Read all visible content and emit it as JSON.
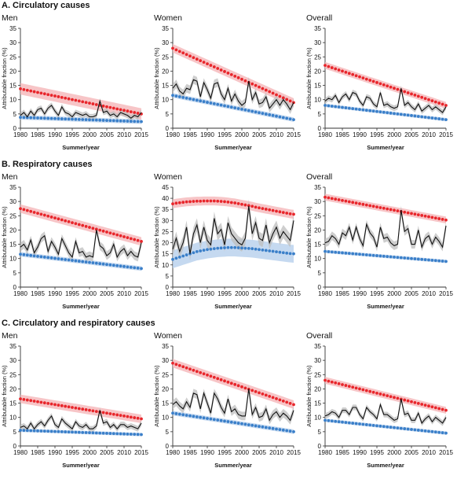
{
  "sections": [
    {
      "title": "A. Circulatory causes",
      "panels": [
        "Men",
        "Women",
        "Overall"
      ]
    },
    {
      "title": "B. Respiratory causes",
      "panels": [
        "Men",
        "Women",
        "Overall"
      ]
    },
    {
      "title": "C. Circulatory and respiratory causes",
      "panels": [
        "Men",
        "Women",
        "Overall"
      ]
    }
  ],
  "colors": {
    "red": "#e8262b",
    "red_band": "#f5b6b9",
    "blue": "#3a7fc9",
    "blue_band": "#b7d0ec",
    "black": "#111111",
    "grey_band": "#bdbdbd"
  },
  "chart_data": [
    {
      "type": "line",
      "section": "A. Circulatory causes",
      "panel": "Men",
      "xlabel": "Summer/year",
      "ylabel": "Attributable fraction (%)",
      "ylim": [
        0,
        35
      ],
      "yticks": [
        0,
        5,
        10,
        15,
        20,
        25,
        30,
        35
      ],
      "xticks": [
        1980,
        1985,
        1990,
        1995,
        2000,
        2005,
        2010,
        2015
      ],
      "x_start": 1980,
      "x_end": 2015,
      "series": [
        {
          "color": "red",
          "start": 13.8,
          "end": 5.0,
          "band": 2.0
        },
        {
          "color": "blue",
          "start": 3.8,
          "end": 2.3,
          "band": 0.8
        },
        {
          "color": "black",
          "values": [
            4.5,
            5.5,
            4.0,
            6.0,
            4.5,
            6.5,
            7.0,
            5.0,
            7.0,
            8.0,
            6.0,
            4.5,
            7.5,
            5.5,
            5.0,
            4.0,
            5.5,
            5.0,
            4.5,
            5.0,
            4.0,
            4.0,
            4.5,
            9.5,
            5.5,
            6.0,
            4.5,
            5.0,
            4.0,
            5.5,
            5.0,
            4.5,
            3.5,
            4.5,
            4.0,
            5.5
          ],
          "band": 1.0
        }
      ]
    },
    {
      "type": "line",
      "section": "A. Circulatory causes",
      "panel": "Women",
      "xlabel": "Summer/year",
      "ylabel": "Attributable fraction (%)",
      "ylim": [
        0,
        35
      ],
      "yticks": [
        0,
        5,
        10,
        15,
        20,
        25,
        30,
        35
      ],
      "xticks": [
        1980,
        1985,
        1990,
        1995,
        2000,
        2005,
        2010,
        2015
      ],
      "x_start": 1980,
      "x_end": 2015,
      "series": [
        {
          "color": "red",
          "start": 28.0,
          "end": 9.0,
          "band": 1.5
        },
        {
          "color": "blue",
          "start": 11.5,
          "end": 3.0,
          "band": 0.8
        },
        {
          "color": "black",
          "values": [
            14.0,
            15.5,
            13.0,
            12.0,
            14.0,
            13.5,
            17.0,
            16.5,
            11.0,
            16.0,
            13.5,
            10.5,
            15.5,
            16.0,
            12.0,
            10.0,
            14.0,
            9.5,
            12.0,
            9.5,
            8.0,
            9.0,
            16.5,
            10.0,
            12.5,
            8.5,
            9.0,
            11.0,
            7.0,
            8.5,
            10.0,
            8.0,
            10.0,
            8.5,
            6.5,
            9.0
          ],
          "band": 1.5
        }
      ]
    },
    {
      "type": "line",
      "section": "A. Circulatory causes",
      "panel": "Overall",
      "xlabel": "Summer/year",
      "ylabel": "Attributable fraction (%)",
      "ylim": [
        0,
        35
      ],
      "yticks": [
        0,
        5,
        10,
        15,
        20,
        25,
        30,
        35
      ],
      "xticks": [
        1980,
        1985,
        1990,
        1995,
        2000,
        2005,
        2010,
        2015
      ],
      "x_start": 1980,
      "x_end": 2015,
      "series": [
        {
          "color": "red",
          "start": 22.0,
          "end": 8.0,
          "band": 1.2
        },
        {
          "color": "blue",
          "start": 8.0,
          "end": 3.0,
          "band": 0.6
        },
        {
          "color": "black",
          "values": [
            9.5,
            10.5,
            10.0,
            11.5,
            9.0,
            11.0,
            12.0,
            10.0,
            12.5,
            12.0,
            9.5,
            8.0,
            11.0,
            10.5,
            8.5,
            7.5,
            12.5,
            8.0,
            8.5,
            7.5,
            7.0,
            7.5,
            14.0,
            8.0,
            9.0,
            7.5,
            6.5,
            8.5,
            6.0,
            7.0,
            8.0,
            6.5,
            7.5,
            6.5,
            5.5,
            7.5
          ],
          "band": 1.0
        }
      ]
    },
    {
      "type": "line",
      "section": "B. Respiratory causes",
      "panel": "Men",
      "xlabel": "Summer/year",
      "ylabel": "Attributable fraction (%)",
      "ylim": [
        0,
        35
      ],
      "yticks": [
        0,
        5,
        10,
        15,
        20,
        25,
        30,
        35
      ],
      "xticks": [
        1980,
        1985,
        1990,
        1995,
        2000,
        2005,
        2010,
        2015
      ],
      "x_start": 1980,
      "x_end": 2015,
      "series": [
        {
          "color": "red",
          "start": 27.5,
          "end": 16.0,
          "band": 1.5
        },
        {
          "color": "blue",
          "start": 11.5,
          "end": 6.5,
          "band": 0.8
        },
        {
          "color": "black",
          "values": [
            14.0,
            15.0,
            13.0,
            16.5,
            12.0,
            14.0,
            17.0,
            18.0,
            12.5,
            16.0,
            14.0,
            11.5,
            17.0,
            14.5,
            12.0,
            10.5,
            16.0,
            12.0,
            12.5,
            10.5,
            11.0,
            10.5,
            20.0,
            14.5,
            13.5,
            11.0,
            12.0,
            15.0,
            10.5,
            12.5,
            13.5,
            11.0,
            12.5,
            11.0,
            10.5,
            15.5
          ],
          "band": 1.5
        }
      ]
    },
    {
      "type": "line",
      "section": "B. Respiratory causes",
      "panel": "Women",
      "xlabel": "Summer/year",
      "ylabel": "Attributable fraction (%)",
      "ylim": [
        0,
        45
      ],
      "yticks": [
        0,
        5,
        10,
        15,
        20,
        25,
        30,
        35,
        40,
        45
      ],
      "xticks": [
        1980,
        1985,
        1990,
        1995,
        2000,
        2005,
        2010,
        2015
      ],
      "x_start": 1980,
      "x_end": 2015,
      "series": [
        {
          "color": "red",
          "values": [
            37.5,
            37.8,
            38.0,
            38.2,
            38.4,
            38.5,
            38.6,
            38.7,
            38.7,
            38.8,
            38.8,
            38.8,
            38.8,
            38.7,
            38.6,
            38.5,
            38.3,
            38.1,
            37.9,
            37.6,
            37.3,
            37.0,
            36.7,
            36.4,
            36.0,
            35.7,
            35.4,
            35.1,
            34.8,
            34.5,
            34.2,
            33.9,
            33.6,
            33.3,
            33.0,
            32.8
          ],
          "band": 2.0
        },
        {
          "color": "blue",
          "values": [
            12.5,
            13.0,
            13.5,
            14.0,
            14.5,
            15.0,
            15.5,
            16.0,
            16.3,
            16.6,
            16.9,
            17.1,
            17.3,
            17.5,
            17.6,
            17.7,
            17.8,
            17.8,
            17.8,
            17.7,
            17.6,
            17.5,
            17.4,
            17.3,
            17.1,
            16.9,
            16.7,
            16.5,
            16.3,
            16.1,
            15.9,
            15.7,
            15.5,
            15.3,
            15.1,
            15.0
          ],
          "band": 4.0
        },
        {
          "color": "black",
          "values": [
            17.0,
            22.0,
            16.0,
            20.0,
            27.0,
            15.0,
            24.0,
            28.0,
            20.0,
            27.0,
            21.0,
            19.0,
            31.0,
            24.0,
            26.0,
            19.0,
            29.0,
            24.0,
            22.0,
            20.0,
            19.0,
            22.0,
            36.5,
            24.0,
            29.0,
            22.0,
            21.0,
            28.0,
            20.0,
            24.0,
            27.0,
            22.0,
            25.0,
            23.0,
            21.0,
            30.0
          ],
          "band": 3.0
        }
      ]
    },
    {
      "type": "line",
      "section": "B. Respiratory causes",
      "panel": "Overall",
      "xlabel": "Summer/year",
      "ylabel": "Attributable fraction (%)",
      "ylim": [
        0,
        35
      ],
      "yticks": [
        0,
        5,
        10,
        15,
        20,
        25,
        30,
        35
      ],
      "xticks": [
        1980,
        1985,
        1990,
        1995,
        2000,
        2005,
        2010,
        2015
      ],
      "x_start": 1980,
      "x_end": 2015,
      "series": [
        {
          "color": "red",
          "start": 31.5,
          "end": 23.5,
          "band": 1.2
        },
        {
          "color": "blue",
          "start": 12.5,
          "end": 9.0,
          "band": 0.6
        },
        {
          "color": "black",
          "values": [
            15.5,
            16.0,
            18.0,
            17.0,
            15.0,
            19.0,
            18.0,
            21.0,
            16.5,
            21.0,
            17.0,
            14.5,
            22.0,
            19.0,
            17.5,
            14.0,
            21.0,
            17.0,
            17.5,
            15.5,
            14.5,
            15.0,
            27.0,
            19.5,
            20.5,
            15.0,
            15.0,
            20.0,
            14.0,
            17.0,
            18.0,
            15.0,
            17.5,
            16.0,
            14.0,
            21.5
          ],
          "band": 1.5
        }
      ]
    },
    {
      "type": "line",
      "section": "C. Circulatory and respiratory causes",
      "panel": "Men",
      "xlabel": "Summer/year",
      "ylabel": "Attributable fraction (%)",
      "ylim": [
        0,
        35
      ],
      "yticks": [
        0,
        5,
        10,
        15,
        20,
        25,
        30,
        35
      ],
      "xticks": [
        1980,
        1985,
        1990,
        1995,
        2000,
        2005,
        2010,
        2015
      ],
      "x_start": 1980,
      "x_end": 2015,
      "series": [
        {
          "color": "red",
          "start": 16.5,
          "end": 9.5,
          "band": 1.5
        },
        {
          "color": "blue",
          "start": 5.5,
          "end": 4.0,
          "band": 0.6
        },
        {
          "color": "black",
          "values": [
            6.5,
            7.0,
            6.0,
            8.0,
            6.0,
            7.5,
            8.5,
            7.0,
            9.0,
            10.5,
            7.5,
            6.5,
            9.5,
            8.0,
            7.0,
            6.0,
            8.5,
            7.0,
            6.5,
            7.5,
            6.0,
            6.0,
            7.0,
            12.5,
            8.0,
            8.5,
            6.5,
            7.5,
            6.0,
            7.5,
            7.5,
            6.5,
            7.0,
            6.5,
            6.0,
            8.0
          ],
          "band": 1.0
        }
      ]
    },
    {
      "type": "line",
      "section": "C. Circulatory and respiratory causes",
      "panel": "Women",
      "xlabel": "Summer/year",
      "ylabel": "Attributable fraction (%)",
      "ylim": [
        0,
        35
      ],
      "yticks": [
        0,
        5,
        10,
        15,
        20,
        25,
        30,
        35
      ],
      "xticks": [
        1980,
        1985,
        1990,
        1995,
        2000,
        2005,
        2010,
        2015
      ],
      "x_start": 1980,
      "x_end": 2015,
      "series": [
        {
          "color": "red",
          "start": 29.0,
          "end": 14.5,
          "band": 1.5
        },
        {
          "color": "blue",
          "start": 11.5,
          "end": 5.0,
          "band": 0.8
        },
        {
          "color": "black",
          "values": [
            14.5,
            15.5,
            14.0,
            13.0,
            15.5,
            13.5,
            18.5,
            18.0,
            13.0,
            18.5,
            15.0,
            11.5,
            18.5,
            16.5,
            13.5,
            11.5,
            16.5,
            12.0,
            13.0,
            11.0,
            10.5,
            10.5,
            20.0,
            11.0,
            13.5,
            10.0,
            10.5,
            13.0,
            9.0,
            11.0,
            12.0,
            10.0,
            11.5,
            10.5,
            9.0,
            12.5
          ],
          "band": 1.5
        }
      ]
    },
    {
      "type": "line",
      "section": "C. Circulatory and respiratory causes",
      "panel": "Overall",
      "xlabel": "Summer/year",
      "ylabel": "Attributable fraction (%)",
      "ylim": [
        0,
        35
      ],
      "yticks": [
        0,
        5,
        10,
        15,
        20,
        25,
        30,
        35
      ],
      "xticks": [
        1980,
        1985,
        1990,
        1995,
        2000,
        2005,
        2010,
        2015
      ],
      "x_start": 1980,
      "x_end": 2015,
      "series": [
        {
          "color": "red",
          "start": 23.0,
          "end": 12.5,
          "band": 1.2
        },
        {
          "color": "blue",
          "start": 9.0,
          "end": 4.5,
          "band": 0.6
        },
        {
          "color": "black",
          "values": [
            10.5,
            11.0,
            12.0,
            11.5,
            10.0,
            12.5,
            12.5,
            11.0,
            13.5,
            13.5,
            11.0,
            9.5,
            13.5,
            12.0,
            11.0,
            9.5,
            14.5,
            11.0,
            11.0,
            10.0,
            9.0,
            9.5,
            16.5,
            11.0,
            11.5,
            9.0,
            9.0,
            11.5,
            8.0,
            9.5,
            10.5,
            8.5,
            10.0,
            9.0,
            8.0,
            10.0
          ],
          "band": 1.0
        }
      ]
    }
  ]
}
